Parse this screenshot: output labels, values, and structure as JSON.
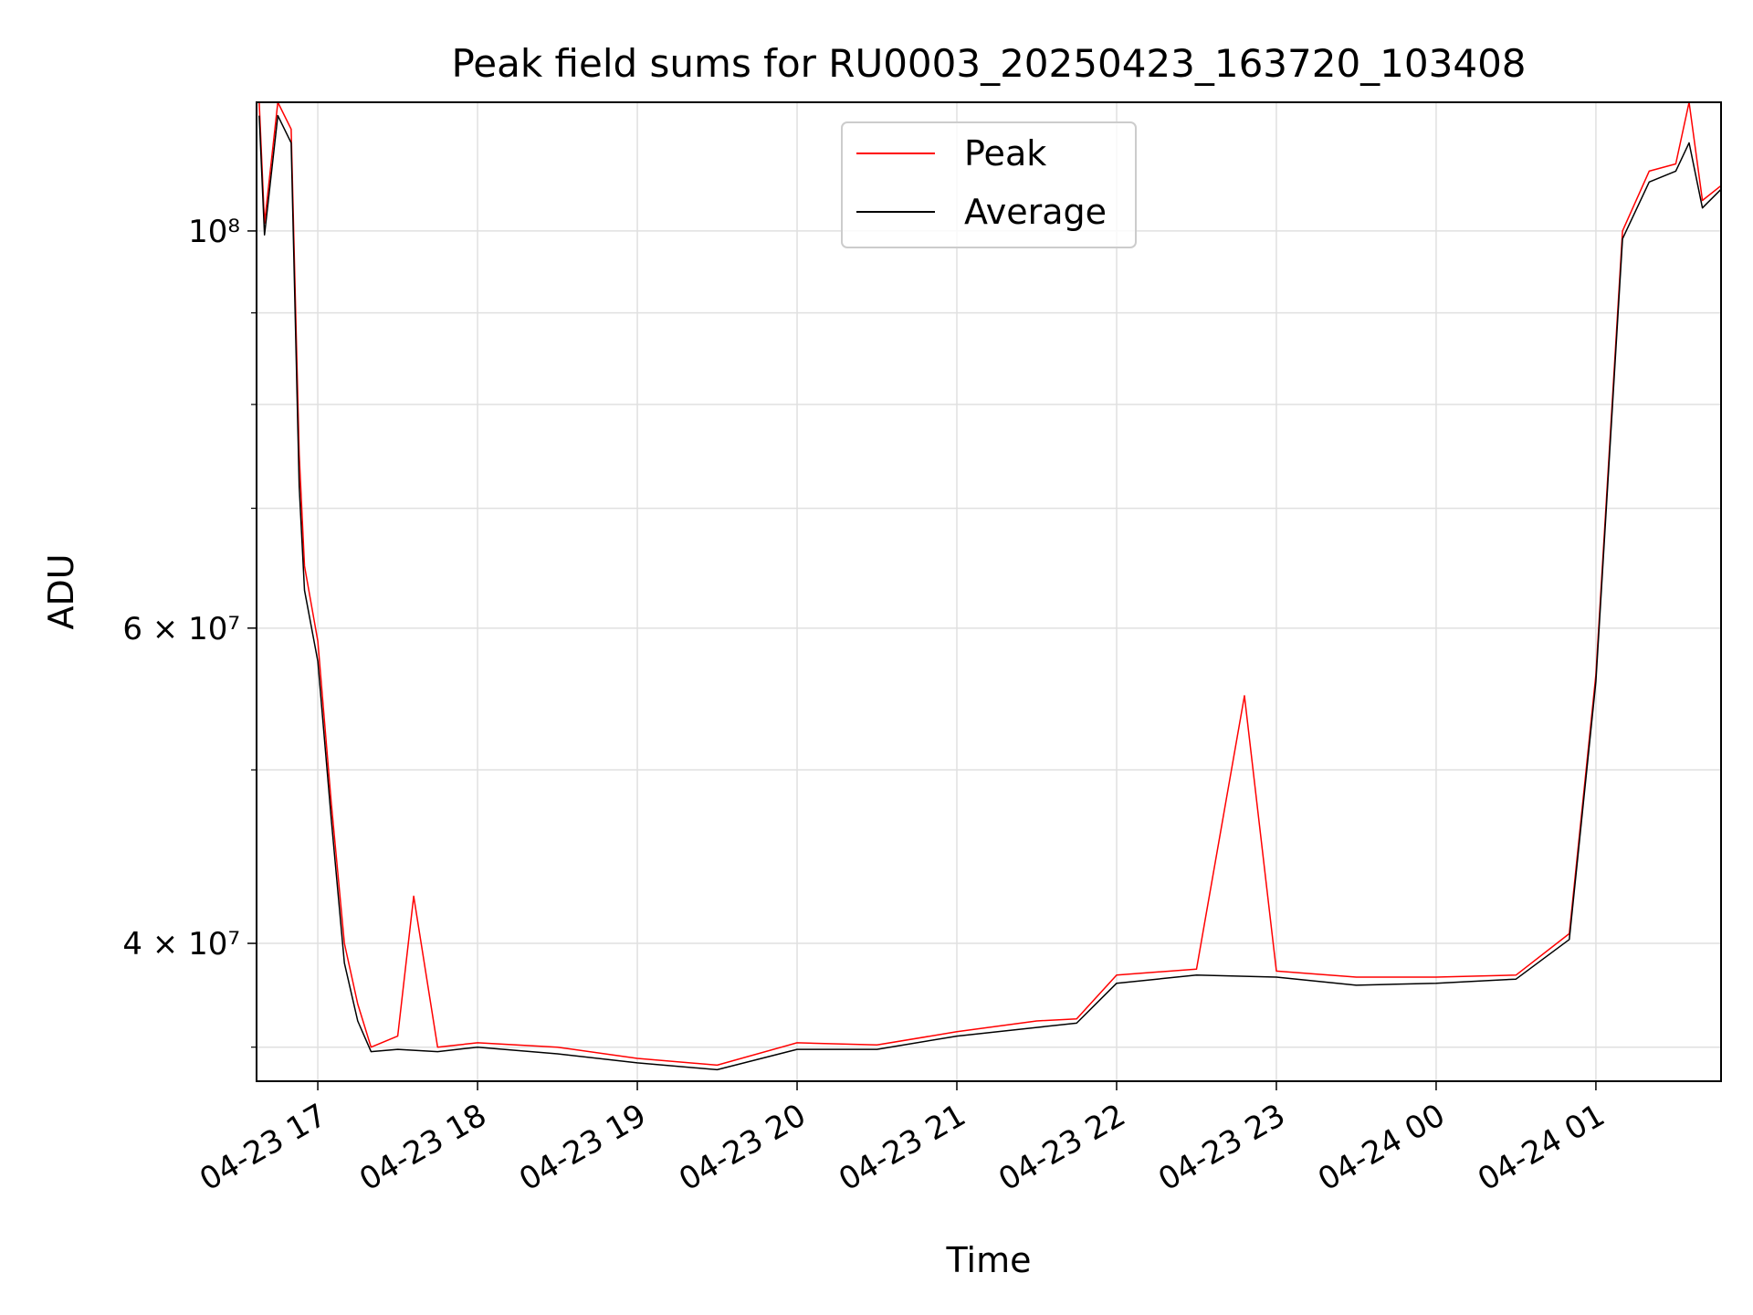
{
  "chart_data": {
    "type": "line",
    "title": "Peak field sums for RU0003_20250423_163720_103408",
    "xlabel": "Time",
    "ylabel": "ADU",
    "y_scale": "log",
    "xlim": [
      "2025-04-23 16:37",
      "2025-04-24 01:47"
    ],
    "ylim": [
      33500000,
      118000000
    ],
    "x_ticks": [
      "04-23 17",
      "04-23 18",
      "04-23 19",
      "04-23 20",
      "04-23 21",
      "04-23 22",
      "04-23 23",
      "04-24 00",
      "04-24 01"
    ],
    "y_ticks": [
      {
        "value": 40000000,
        "label": "4 × 10⁷"
      },
      {
        "value": 60000000,
        "label": "6 × 10⁷"
      },
      {
        "value": 100000000,
        "label": "10⁸"
      }
    ],
    "grid": true,
    "legend_position": "top-center",
    "series": [
      {
        "name": "Peak",
        "color": "#ff0000",
        "x": [
          "2025-04-23 16:38",
          "2025-04-23 16:40",
          "2025-04-23 16:45",
          "2025-04-23 16:50",
          "2025-04-23 16:53",
          "2025-04-23 16:55",
          "2025-04-23 17:00",
          "2025-04-23 17:05",
          "2025-04-23 17:10",
          "2025-04-23 17:15",
          "2025-04-23 17:20",
          "2025-04-23 17:30",
          "2025-04-23 17:36",
          "2025-04-23 17:45",
          "2025-04-23 18:00",
          "2025-04-23 18:30",
          "2025-04-23 19:00",
          "2025-04-23 19:30",
          "2025-04-23 20:00",
          "2025-04-23 20:30",
          "2025-04-23 21:00",
          "2025-04-23 21:30",
          "2025-04-23 21:45",
          "2025-04-23 22:00",
          "2025-04-23 22:30",
          "2025-04-23 22:48",
          "2025-04-23 23:00",
          "2025-04-23 23:30",
          "2025-04-24 00:00",
          "2025-04-24 00:30",
          "2025-04-24 00:50",
          "2025-04-24 01:00",
          "2025-04-24 01:10",
          "2025-04-24 01:20",
          "2025-04-24 01:30",
          "2025-04-24 01:35",
          "2025-04-24 01:40",
          "2025-04-24 01:47"
        ],
        "y": [
          118000000,
          101000000,
          118000000,
          114000000,
          75000000,
          65000000,
          59000000,
          48000000,
          40000000,
          37000000,
          35000000,
          35500000,
          42500000,
          35000000,
          35200000,
          35000000,
          34500000,
          34200000,
          35200000,
          35100000,
          35700000,
          36200000,
          36300000,
          38400000,
          38700000,
          55000000,
          38600000,
          38300000,
          38300000,
          38400000,
          40500000,
          56500000,
          100000000,
          108000000,
          109000000,
          118000000,
          104000000,
          106000000
        ]
      },
      {
        "name": "Average",
        "color": "#000000",
        "x": [
          "2025-04-23 16:38",
          "2025-04-23 16:40",
          "2025-04-23 16:45",
          "2025-04-23 16:50",
          "2025-04-23 16:53",
          "2025-04-23 16:55",
          "2025-04-23 17:00",
          "2025-04-23 17:05",
          "2025-04-23 17:10",
          "2025-04-23 17:15",
          "2025-04-23 17:20",
          "2025-04-23 17:30",
          "2025-04-23 17:45",
          "2025-04-23 18:00",
          "2025-04-23 18:30",
          "2025-04-23 19:00",
          "2025-04-23 19:30",
          "2025-04-23 20:00",
          "2025-04-23 20:30",
          "2025-04-23 21:00",
          "2025-04-23 21:30",
          "2025-04-23 21:45",
          "2025-04-23 22:00",
          "2025-04-23 22:30",
          "2025-04-23 23:00",
          "2025-04-23 23:30",
          "2025-04-24 00:00",
          "2025-04-24 00:30",
          "2025-04-24 00:50",
          "2025-04-24 01:00",
          "2025-04-24 01:10",
          "2025-04-24 01:20",
          "2025-04-24 01:30",
          "2025-04-24 01:35",
          "2025-04-24 01:40",
          "2025-04-24 01:47"
        ],
        "y": [
          116000000,
          99500000,
          116000000,
          112000000,
          72000000,
          63000000,
          57500000,
          47000000,
          39000000,
          36200000,
          34800000,
          34900000,
          34800000,
          35000000,
          34700000,
          34300000,
          34000000,
          34900000,
          34900000,
          35500000,
          35900000,
          36100000,
          38000000,
          38400000,
          38300000,
          37900000,
          38000000,
          38200000,
          40200000,
          56000000,
          99000000,
          106500000,
          108000000,
          112000000,
          103000000,
          105500000
        ]
      }
    ]
  }
}
